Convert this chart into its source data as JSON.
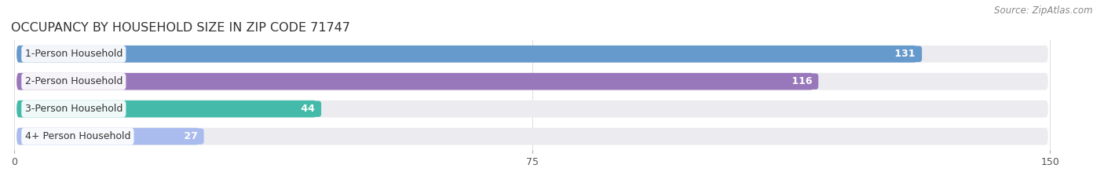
{
  "title": "OCCUPANCY BY HOUSEHOLD SIZE IN ZIP CODE 71747",
  "source": "Source: ZipAtlas.com",
  "categories": [
    "1-Person Household",
    "2-Person Household",
    "3-Person Household",
    "4+ Person Household"
  ],
  "values": [
    131,
    116,
    44,
    27
  ],
  "bar_colors": [
    "#6699cc",
    "#9977bb",
    "#44bbaa",
    "#aabbee"
  ],
  "bar_background_color": "#ebebf0",
  "xlim": [
    0,
    150
  ],
  "xticks": [
    0,
    75,
    150
  ],
  "title_fontsize": 11.5,
  "source_fontsize": 8.5,
  "label_fontsize": 9,
  "value_fontsize": 9,
  "value_color_inside": "#ffffff",
  "value_color_outside": "#555555",
  "background_color": "#ffffff"
}
